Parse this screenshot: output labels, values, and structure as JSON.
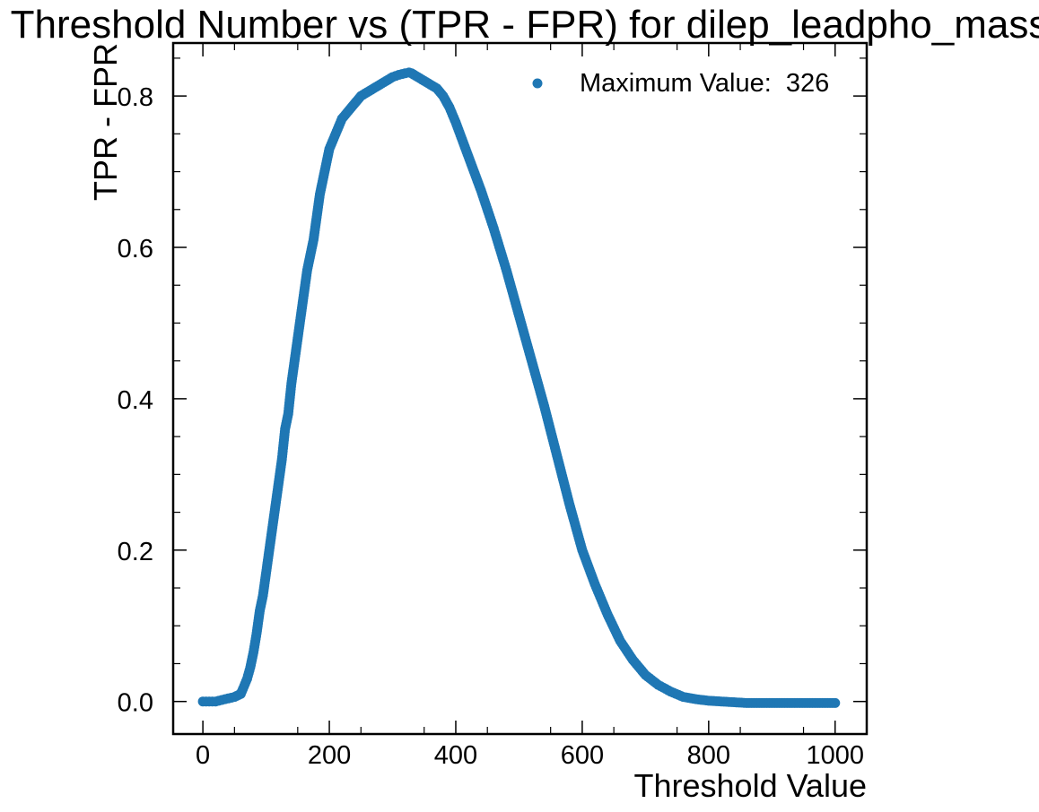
{
  "chart_data": {
    "type": "scatter",
    "title": "Threshold Number vs (TPR - FPR) for dilep_leadpho_mass",
    "xlabel": "Threshold Value",
    "ylabel": "TPR - FPR",
    "xlim": [
      -47,
      1050
    ],
    "ylim": [
      -0.043,
      0.87
    ],
    "x_ticks": [
      0,
      200,
      400,
      600,
      800,
      1000
    ],
    "x_tick_labels": [
      "0",
      "200",
      "400",
      "600",
      "800",
      "1000"
    ],
    "y_ticks": [
      0.0,
      0.2,
      0.4,
      0.6,
      0.8
    ],
    "y_tick_labels": [
      "0.0",
      "0.2",
      "0.4",
      "0.6",
      "0.8"
    ],
    "grid": false,
    "legend": {
      "position": "top-right",
      "entries": [
        "Maximum Value:  326"
      ]
    },
    "series": [
      {
        "name": "Maximum Value:  326",
        "color": "#1f77b4",
        "x": [
          0,
          10,
          20,
          30,
          40,
          50,
          60,
          65,
          70,
          75,
          80,
          85,
          90,
          95,
          100,
          105,
          110,
          115,
          120,
          125,
          130,
          135,
          140,
          145,
          150,
          155,
          160,
          165,
          170,
          175,
          180,
          185,
          190,
          195,
          200,
          210,
          220,
          230,
          240,
          250,
          260,
          270,
          280,
          290,
          300,
          310,
          320,
          326,
          330,
          340,
          350,
          360,
          370,
          380,
          390,
          400,
          420,
          440,
          460,
          480,
          500,
          520,
          540,
          560,
          580,
          600,
          620,
          640,
          660,
          680,
          700,
          720,
          740,
          760,
          780,
          800,
          820,
          840,
          860,
          880,
          900,
          920,
          940,
          960,
          980,
          1000
        ],
        "y": [
          0.0,
          0.0,
          0.0,
          0.002,
          0.004,
          0.006,
          0.01,
          0.02,
          0.03,
          0.045,
          0.065,
          0.09,
          0.12,
          0.14,
          0.17,
          0.2,
          0.23,
          0.26,
          0.29,
          0.32,
          0.36,
          0.38,
          0.42,
          0.45,
          0.48,
          0.51,
          0.54,
          0.57,
          0.59,
          0.61,
          0.64,
          0.67,
          0.69,
          0.71,
          0.73,
          0.75,
          0.77,
          0.78,
          0.79,
          0.8,
          0.805,
          0.81,
          0.815,
          0.82,
          0.825,
          0.828,
          0.83,
          0.831,
          0.83,
          0.825,
          0.82,
          0.815,
          0.81,
          0.8,
          0.785,
          0.765,
          0.72,
          0.675,
          0.625,
          0.57,
          0.51,
          0.45,
          0.39,
          0.325,
          0.26,
          0.2,
          0.155,
          0.115,
          0.08,
          0.055,
          0.035,
          0.022,
          0.013,
          0.006,
          0.003,
          0.001,
          0.0,
          -0.001,
          -0.002,
          -0.002,
          -0.002,
          -0.002,
          -0.002,
          -0.002,
          -0.002,
          -0.002
        ]
      }
    ]
  }
}
